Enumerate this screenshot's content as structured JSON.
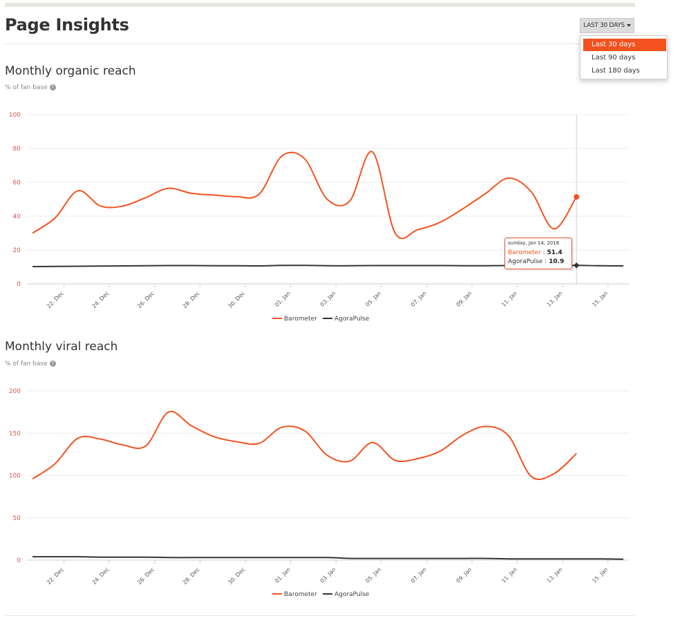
{
  "page": {
    "title": "Page Insights"
  },
  "date_range": {
    "button_label": "LAST 30 DAYS",
    "options": [
      "Last 30 days",
      "Last 90 days",
      "Last 180 days"
    ],
    "selected_index": 0
  },
  "colors": {
    "barometer": "#f4511e",
    "agorapulse": "#333333",
    "axis_text": "#d9534f",
    "grid": "#ececec"
  },
  "organic": {
    "title": "Monthly organic reach",
    "subtitle": "% of fan base",
    "tooltip": {
      "date": "sunday, Jan 14, 2018",
      "series1": "Barometer",
      "value1": "51.4",
      "series2": "AgoraPulse",
      "value2": "10.9"
    },
    "chart_data": {
      "type": "line",
      "title": "Monthly organic reach",
      "ylim": [
        0,
        100
      ],
      "yticks": [
        "100",
        "80",
        "60",
        "40",
        "20",
        "0"
      ],
      "xticks": [
        "22. Dec",
        "24. Dec",
        "26. Dec",
        "28. Dec",
        "30. Dec",
        "01. Jan",
        "03. Jan",
        "05. Jan",
        "07. Jan",
        "09. Jan",
        "11. Jan",
        "13. Jan",
        "15. Jan"
      ],
      "x_start": "20. Dec",
      "legend": [
        "Barometer",
        "AgoraPulse"
      ],
      "series": [
        {
          "name": "Barometer",
          "values": [
            30,
            39,
            55,
            46,
            46,
            51,
            56.5,
            53.5,
            52.5,
            51.5,
            53,
            75.5,
            74,
            50,
            49,
            78,
            30,
            32,
            36.5,
            44.5,
            53.5,
            62.5,
            54.5,
            32.5,
            51.4
          ]
        },
        {
          "name": "AgoraPulse",
          "values": [
            10.2,
            10.3,
            10.4,
            10.5,
            10.6,
            10.7,
            10.8,
            10.8,
            10.7,
            10.7,
            10.6,
            10.9,
            10.9,
            10.7,
            10.7,
            10.8,
            10.8,
            10.8,
            10.8,
            10.7,
            10.7,
            10.8,
            10.8,
            10.8,
            10.9,
            10.7,
            10.6
          ]
        }
      ]
    }
  },
  "viral": {
    "title": "Monthly viral reach",
    "subtitle": "% of fan base",
    "chart_data": {
      "type": "line",
      "title": "Monthly viral reach",
      "ylim": [
        0,
        200
      ],
      "yticks": [
        "200",
        "150",
        "100",
        "50",
        "0"
      ],
      "xticks": [
        "22. Dec",
        "24. Dec",
        "26. Dec",
        "28. Dec",
        "30. Dec",
        "01. Jan",
        "03. Jan",
        "05. Jan",
        "07. Jan",
        "09. Jan",
        "11. Jan",
        "13. Jan",
        "15. Jan"
      ],
      "x_start": "20. Dec",
      "legend": [
        "Barometer",
        "AgoraPulse"
      ],
      "series": [
        {
          "name": "Barometer",
          "values": [
            96,
            114,
            144,
            143,
            136,
            135,
            175,
            159,
            146,
            140,
            138,
            157,
            153,
            124,
            117,
            139,
            118,
            120,
            129,
            148,
            158,
            147,
            99,
            102,
            126
          ]
        },
        {
          "name": "AgoraPulse",
          "values": [
            4,
            4,
            4,
            3.5,
            3.5,
            3.5,
            3,
            3,
            3,
            3,
            3,
            3,
            3,
            3,
            2,
            2,
            2,
            2,
            2,
            2,
            2,
            1.5,
            1.5,
            1.5,
            1.5,
            1.5,
            1
          ]
        }
      ]
    }
  }
}
